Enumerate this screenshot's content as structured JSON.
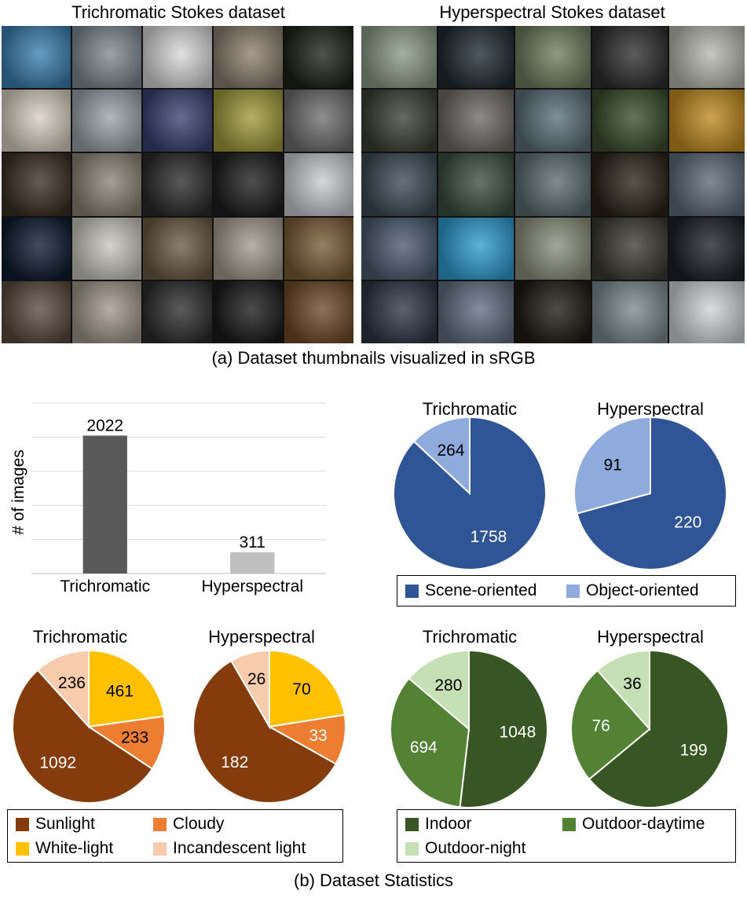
{
  "thumbnails": {
    "left_title": "Trichromatic Stokes dataset",
    "right_title": "Hyperspectral Stokes dataset",
    "caption": "(a) Dataset thumbnails visualized in sRGB",
    "left_tiles": [
      "#3b7fb0",
      "#7f8a92",
      "#d9d9d9",
      "#8c7f6e",
      "#1c2418",
      "#d9cfbf",
      "#9aa4aa",
      "#3a4272",
      "#9f9a3a",
      "#6f6f6f",
      "#3a2e24",
      "#8a8473",
      "#2b2b2b",
      "#1e1e1e",
      "#c9ccd0",
      "#0d1a2e",
      "#c9c6bf",
      "#6a5a44",
      "#a39b8f",
      "#7a5c35",
      "#5a4a3e",
      "#a2978a",
      "#2d2d2d",
      "#1a1a1a",
      "#6e4a2a"
    ],
    "right_tiles": [
      "#8a9a86",
      "#1f2a33",
      "#6d7d5f",
      "#2e2e2e",
      "#b8b8b0",
      "#3b3f36",
      "#6b6a65",
      "#5a7078",
      "#3a4d2c",
      "#c08a20",
      "#3c4a55",
      "#3a4e40",
      "#5b6b6e",
      "#2a2318",
      "#5d6a78",
      "#4a5a6e",
      "#2e9bd0",
      "#8a8f7a",
      "#3b3a33",
      "#1e2028",
      "#2d3545",
      "#5f6f82",
      "#1e1a12",
      "#7a8a8e",
      "#d0d4d8"
    ]
  },
  "bar_chart": {
    "ylabel": "# of images",
    "bar_colors": [
      "#595959",
      "#bfbfbf"
    ]
  },
  "caption_b": "(b) Dataset Statistics",
  "legends": {
    "orientation": [
      {
        "label": "Scene-oriented",
        "color": "#2f5597"
      },
      {
        "label": "Object-oriented",
        "color": "#8faadc"
      }
    ],
    "illumination": [
      {
        "label": "Sunlight",
        "color": "#843c0c"
      },
      {
        "label": "Cloudy",
        "color": "#ed7d31"
      },
      {
        "label": "White-light",
        "color": "#ffc000"
      },
      {
        "label": "Incandescent light",
        "color": "#f8cbad"
      }
    ],
    "location": [
      {
        "label": "Indoor",
        "color": "#375623"
      },
      {
        "label": "Outdoor-daytime",
        "color": "#548235"
      },
      {
        "label": "Outdoor-night",
        "color": "#c5e0b4"
      }
    ]
  },
  "chart_data": [
    {
      "type": "bar",
      "categories": [
        "Trichromatic",
        "Hyperspectral"
      ],
      "values": [
        2022,
        311
      ],
      "ylabel": "# of images",
      "ylim": [
        0,
        2500
      ],
      "grid": true
    },
    {
      "type": "pie",
      "title": "Trichromatic",
      "labels": [
        "Scene-oriented",
        "Object-oriented"
      ],
      "values": [
        1758,
        264
      ],
      "colors": [
        "#2f5597",
        "#8faadc"
      ]
    },
    {
      "type": "pie",
      "title": "Hyperspectral",
      "labels": [
        "Scene-oriented",
        "Object-oriented"
      ],
      "values": [
        220,
        91
      ],
      "colors": [
        "#2f5597",
        "#8faadc"
      ]
    },
    {
      "type": "pie",
      "title": "Trichromatic",
      "labels": [
        "White-light",
        "Cloudy",
        "Sunlight",
        "Incandescent light"
      ],
      "values": [
        461,
        233,
        1092,
        236
      ],
      "colors": [
        "#ffc000",
        "#ed7d31",
        "#843c0c",
        "#f8cbad"
      ]
    },
    {
      "type": "pie",
      "title": "Hyperspectral",
      "labels": [
        "White-light",
        "Cloudy",
        "Sunlight",
        "Incandescent light"
      ],
      "values": [
        70,
        33,
        182,
        26
      ],
      "colors": [
        "#ffc000",
        "#ed7d31",
        "#843c0c",
        "#f8cbad"
      ]
    },
    {
      "type": "pie",
      "title": "Trichromatic",
      "labels": [
        "Indoor",
        "Outdoor-daytime",
        "Outdoor-night"
      ],
      "values": [
        1048,
        694,
        280
      ],
      "colors": [
        "#375623",
        "#548235",
        "#c5e0b4"
      ]
    },
    {
      "type": "pie",
      "title": "Hyperspectral",
      "labels": [
        "Indoor",
        "Outdoor-daytime",
        "Outdoor-night"
      ],
      "values": [
        199,
        76,
        36
      ],
      "colors": [
        "#375623",
        "#548235",
        "#c5e0b4"
      ]
    }
  ]
}
